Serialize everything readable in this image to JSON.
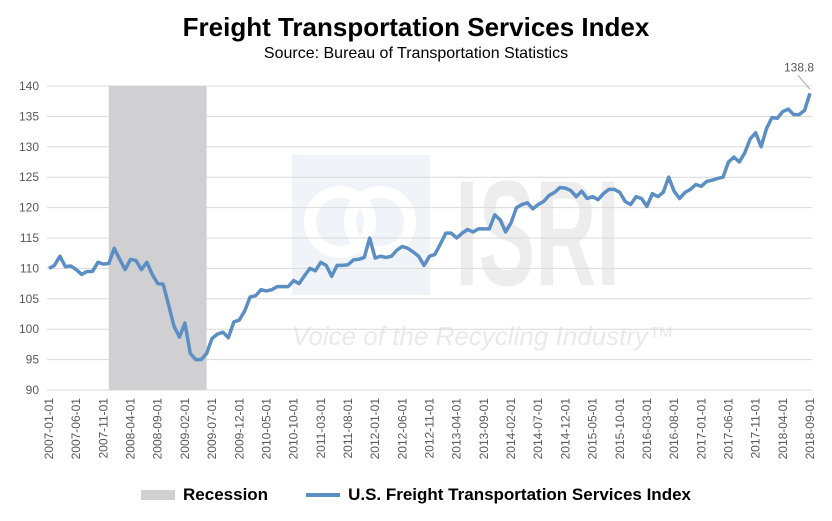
{
  "chart_data": {
    "type": "line",
    "title": "Freight Transportation Services Index",
    "subtitle": "Source: Bureau of Transportation Statistics",
    "ylim": [
      90,
      140
    ],
    "y_ticks": [
      90,
      95,
      100,
      105,
      110,
      115,
      120,
      125,
      130,
      135,
      140
    ],
    "grid": true,
    "legend_placement": "bottom",
    "x_tick_labels": [
      "2007-01-01",
      "2007-06-01",
      "2007-11-01",
      "2008-04-01",
      "2008-09-01",
      "2009-02-01",
      "2009-07-01",
      "2009-12-01",
      "2010-05-01",
      "2010-10-01",
      "2011-03-01",
      "2011-08-01",
      "2012-01-01",
      "2012-06-01",
      "2012-11-01",
      "2013-04-01",
      "2013-09-01",
      "2014-02-01",
      "2014-07-01",
      "2014-12-01",
      "2015-05-01",
      "2015-10-01",
      "2016-03-01",
      "2016-08-01",
      "2017-01-01",
      "2017-06-01",
      "2017-11-01",
      "2018-04-01",
      "2018-09-01"
    ],
    "recession": {
      "name": "Recession",
      "start": "2007-12-01",
      "end": "2009-06-01",
      "color": "#d0d0d2"
    },
    "series": [
      {
        "name": "U.S. Freight Transportation Services Index",
        "color": "#5b8fc4",
        "monthly_values_by_year": {
          "2007": [
            110,
            110.5,
            112,
            110.3,
            110.4,
            109.8,
            109,
            109.5,
            109.5,
            111,
            110.7,
            110.8
          ],
          "2008": [
            113.3,
            111.5,
            109.8,
            111.5,
            111.3,
            109.8,
            111,
            109,
            107.5,
            107.4,
            104,
            100.5
          ],
          "2009": [
            98.7,
            101,
            96,
            95,
            95,
            96,
            98.5,
            99.2,
            99.5,
            98.6,
            101.2,
            101.5
          ],
          "2010": [
            103,
            105.3,
            105.5,
            106.5,
            106.3,
            106.5,
            107,
            107,
            107,
            108,
            107.5,
            108.8
          ],
          "2011": [
            110,
            109.6,
            111,
            110.5,
            108.7,
            110.5,
            110.5,
            110.6,
            111.4,
            111.5,
            111.8,
            115
          ],
          "2012": [
            111.7,
            112,
            111.8,
            112,
            113,
            113.6,
            113.3,
            112.7,
            112,
            110.5,
            112,
            112.3
          ],
          "2013": [
            114,
            115.8,
            115.8,
            115,
            115.8,
            116.4,
            116,
            116.5,
            116.5,
            116.5,
            118.8,
            118
          ],
          "2014": [
            116,
            117.5,
            120,
            120.5,
            120.8,
            119.8,
            120.5,
            121,
            122,
            122.5,
            123.3,
            123.2
          ],
          "2015": [
            122.8,
            121.8,
            122.7,
            121.5,
            121.8,
            121.3,
            122.3,
            123,
            123,
            122.5,
            121,
            120.5
          ],
          "2016": [
            121.8,
            121.5,
            120.2,
            122.3,
            121.8,
            122.5,
            125,
            122.7,
            121.5,
            122.5,
            123,
            123.8
          ],
          "2017": [
            123.5,
            124.3,
            124.5,
            124.8,
            125,
            127.5,
            128.3,
            127.5,
            129,
            131.3,
            132.3,
            130
          ],
          "2018": [
            133,
            134.8,
            134.7,
            135.8,
            136.2,
            135.3,
            135.3,
            136,
            138.8
          ]
        }
      }
    ],
    "data_labels": [
      {
        "date": "2018-09-01",
        "text": "138.8"
      }
    ]
  },
  "watermark": {
    "logo_text": "ISRI",
    "tagline": "Voice of the Recycling Industry™"
  }
}
